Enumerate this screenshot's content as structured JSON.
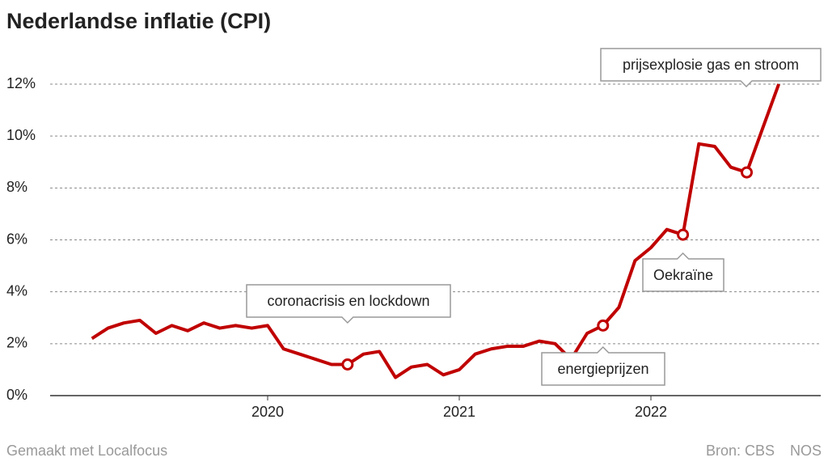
{
  "chart_data": {
    "type": "line",
    "title": "Nederlandse inflatie (CPI)",
    "x": [
      2019.083,
      2019.167,
      2019.25,
      2019.333,
      2019.417,
      2019.5,
      2019.583,
      2019.667,
      2019.75,
      2019.833,
      2019.917,
      2020,
      2020.083,
      2020.167,
      2020.25,
      2020.333,
      2020.417,
      2020.5,
      2020.583,
      2020.667,
      2020.75,
      2020.833,
      2020.917,
      2021,
      2021.083,
      2021.167,
      2021.25,
      2021.333,
      2021.417,
      2021.5,
      2021.583,
      2021.667,
      2021.75,
      2021.833,
      2021.917,
      2022,
      2022.083,
      2022.167,
      2022.25,
      2022.333,
      2022.417,
      2022.5,
      2022.583,
      2022.667
    ],
    "series": [
      {
        "color": "#c00000",
        "values": [
          2.2,
          2.6,
          2.8,
          2.9,
          2.4,
          2.7,
          2.5,
          2.8,
          2.6,
          2.7,
          2.6,
          2.7,
          1.8,
          1.6,
          1.4,
          1.2,
          1.2,
          1.6,
          1.7,
          0.7,
          1.1,
          1.2,
          0.8,
          1.0,
          1.6,
          1.8,
          1.9,
          1.9,
          2.1,
          2.0,
          1.4,
          2.4,
          2.7,
          3.4,
          5.2,
          5.7,
          6.4,
          6.2,
          9.7,
          9.6,
          8.8,
          8.6,
          10.3,
          12.0
        ]
      }
    ],
    "xlim": [
      2018.865,
      2022.886
    ],
    "xticks": [
      2020,
      2021,
      2022
    ],
    "ylim": [
      0,
      12
    ],
    "yticks": [
      {
        "value": 0,
        "label": "0%"
      },
      {
        "value": 2,
        "label": "2%"
      },
      {
        "value": 4,
        "label": "4%"
      },
      {
        "value": 6,
        "label": "6%"
      },
      {
        "value": 8,
        "label": "8%"
      },
      {
        "value": 10,
        "label": "10%"
      },
      {
        "value": 12,
        "label": "12%"
      }
    ],
    "grid": true,
    "annotations": [
      "coronacrisis en lockdown",
      "energieprijzen",
      "Oekraïne",
      "prijsexplosie gas en stroom"
    ],
    "footer": {
      "left": "Gemaakt met Localfocus",
      "source": "Bron: CBS",
      "brand": "NOS"
    }
  }
}
